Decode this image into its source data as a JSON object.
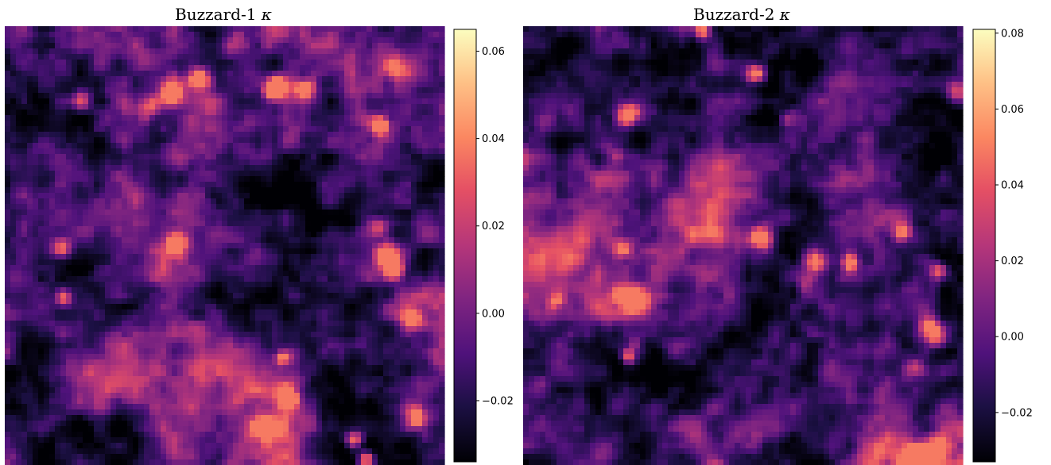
{
  "chart_data": [
    {
      "type": "heatmap",
      "title": "Buzzard-1",
      "title_symbol": "κ",
      "colormap": "magma",
      "colorbar": {
        "vmin": -0.034,
        "vmax": 0.065,
        "ticks": [
          -0.02,
          0.0,
          0.02,
          0.04,
          0.06
        ],
        "tick_labels": [
          "−0.02",
          "0.00",
          "0.02",
          "0.04",
          "0.06"
        ]
      },
      "seed": 11
    },
    {
      "type": "heatmap",
      "title": "Buzzard-2",
      "title_symbol": "κ",
      "colormap": "magma",
      "colorbar": {
        "vmin": -0.033,
        "vmax": 0.081,
        "ticks": [
          -0.02,
          0.0,
          0.02,
          0.04,
          0.06,
          0.08
        ],
        "tick_labels": [
          "−0.02",
          "0.00",
          "0.02",
          "0.04",
          "0.06",
          "0.08"
        ]
      },
      "seed": 29
    }
  ]
}
